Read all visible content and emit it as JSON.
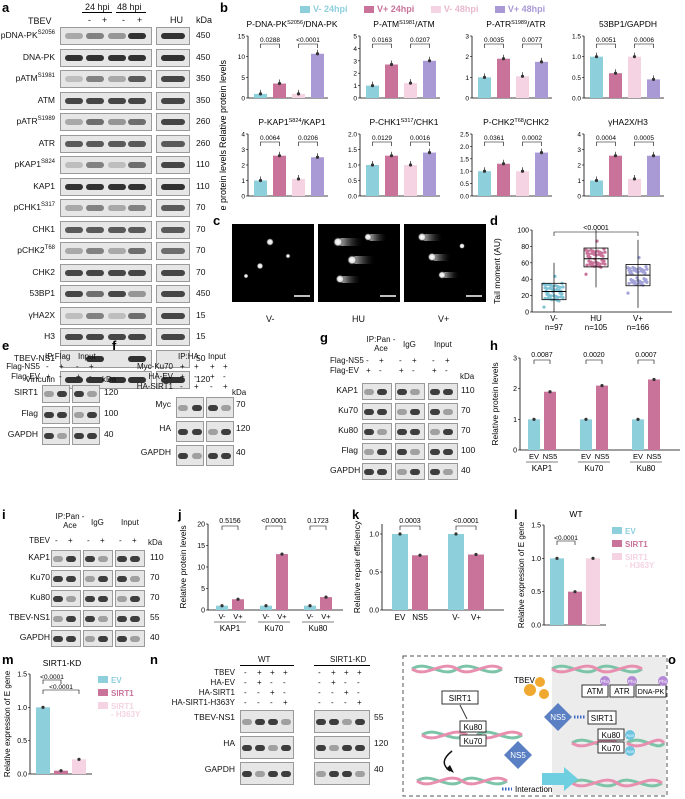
{
  "panels": {
    "a": {
      "letter": "a",
      "tbev_label": "TBEV",
      "time_labels": [
        "24 hpi",
        "48 hpi"
      ],
      "signs": [
        "-",
        "+",
        "-",
        "+"
      ],
      "hu_label": "HU",
      "kda_label": "kDa",
      "rows": [
        {
          "name": "pDNA-PK",
          "sup": "S2056",
          "kda": "450"
        },
        {
          "name": "DNA-PK",
          "sup": "",
          "kda": "450"
        },
        {
          "name": "pATM",
          "sup": "S1981",
          "kda": "350"
        },
        {
          "name": "ATM",
          "sup": "",
          "kda": "350"
        },
        {
          "name": "pATR",
          "sup": "S1989",
          "kda": "260"
        },
        {
          "name": "ATR",
          "sup": "",
          "kda": "260"
        },
        {
          "name": "pKAP1",
          "sup": "S824",
          "kda": "110"
        },
        {
          "name": "KAP1",
          "sup": "",
          "kda": "110"
        },
        {
          "name": "pCHK1",
          "sup": "S317",
          "kda": "70"
        },
        {
          "name": "CHK1",
          "sup": "",
          "kda": "70"
        },
        {
          "name": "pCHK2",
          "sup": "T68",
          "kda": "70"
        },
        {
          "name": "CHK2",
          "sup": "",
          "kda": "70"
        },
        {
          "name": "53BP1",
          "sup": "",
          "kda": "450"
        },
        {
          "name": "γHA2X",
          "sup": "",
          "kda": "15"
        },
        {
          "name": "H3",
          "sup": "",
          "kda": "15"
        },
        {
          "name": "TBEV-NS1",
          "sup": "",
          "kda": "50"
        },
        {
          "name": "Vinculin",
          "sup": "",
          "kda": "120"
        }
      ]
    },
    "b": {
      "letter": "b",
      "legend": [
        {
          "label": "V-  24hpi",
          "color": "#8ecfdc"
        },
        {
          "label": "V+  24hpi",
          "color": "#c9739a"
        },
        {
          "label": "V-  48hpi",
          "color": "#f5d3e2"
        },
        {
          "label": "V+  48hpi",
          "color": "#a99ad6"
        }
      ],
      "ylabel": "Relative protein levels",
      "charts": [
        {
          "title": "P-DNA-PK",
          "sup": "S2056",
          "title_rest": "/DNA-PK",
          "p": [
            "0.0288",
            "<0.0001"
          ],
          "values": [
            1,
            3.5,
            1,
            10.7
          ],
          "ylim": [
            0,
            15
          ],
          "ticks": [
            "0",
            "5",
            "10",
            "15"
          ]
        },
        {
          "title": "P-ATM",
          "sup": "S1981",
          "title_rest": "/ATM",
          "p": [
            "0.0163",
            "0.0207"
          ],
          "values": [
            1,
            2.7,
            1.2,
            3.0
          ],
          "ylim": [
            0,
            5
          ],
          "ticks": [
            "0",
            "1",
            "2",
            "3",
            "4",
            "5"
          ]
        },
        {
          "title": "P-ATR",
          "sup": "S1989",
          "title_rest": "/ATR",
          "p": [
            "0.0035",
            "0.0077"
          ],
          "values": [
            1,
            1.9,
            1.05,
            1.75
          ],
          "ylim": [
            0,
            3
          ],
          "ticks": [
            "0",
            "1",
            "2",
            "3"
          ]
        },
        {
          "title": "53BP1/GAPDH",
          "sup": "",
          "title_rest": "",
          "p": [
            "0.0051",
            "0.0006"
          ],
          "values": [
            1,
            0.6,
            1.0,
            0.45
          ],
          "ylim": [
            0,
            1.5
          ],
          "ticks": [
            "0.0",
            "0.5",
            "1.0",
            "1.5"
          ]
        },
        {
          "title": "P-KAP1",
          "sup": "S824",
          "title_rest": "/KAP1",
          "p": [
            "0.0064",
            "0.0206"
          ],
          "values": [
            1,
            2.6,
            1.1,
            2.5
          ],
          "ylim": [
            0,
            4
          ],
          "ticks": [
            "0",
            "1",
            "2",
            "3",
            "4"
          ]
        },
        {
          "title": "P-CHK1",
          "sup": "S317",
          "title_rest": "/CHK1",
          "p": [
            "0.0129",
            "0.0016"
          ],
          "values": [
            1,
            1.3,
            1.0,
            1.4
          ],
          "ylim": [
            0,
            2
          ],
          "ticks": [
            "0.0",
            "0.5",
            "1.0",
            "1.5",
            "2.0"
          ]
        },
        {
          "title": "P-CHK2",
          "sup": "T68",
          "title_rest": "/CHK2",
          "p": [
            "0.0361",
            "0.0002"
          ],
          "values": [
            1,
            1.3,
            1.0,
            1.75
          ],
          "ylim": [
            0,
            2.5
          ],
          "ticks": [
            "0.0",
            "0.5",
            "1.0",
            "1.5",
            "2.0",
            "2.5"
          ]
        },
        {
          "title": "γHA2X/H3",
          "sup": "",
          "title_rest": "",
          "p": [
            "0.0004",
            "0.0005"
          ],
          "values": [
            1,
            2.6,
            1.1,
            2.6
          ],
          "ylim": [
            0,
            4
          ],
          "ticks": [
            "0",
            "1",
            "2",
            "3",
            "4"
          ]
        }
      ]
    },
    "c": {
      "letter": "c",
      "labels": [
        "V-",
        "HU",
        "V+"
      ]
    },
    "d": {
      "letter": "d",
      "ylabel": "Tail moment (AU)",
      "p": "<0.0001",
      "ticks": [
        "0",
        "20",
        "40",
        "60",
        "80",
        "100"
      ],
      "ylim": [
        0,
        100
      ],
      "groups": [
        {
          "label": "V-",
          "n": "n=97",
          "median": 25,
          "q1": 15,
          "q3": 35,
          "min": 0,
          "max": 60,
          "color": "#7fc3d6"
        },
        {
          "label": "HU",
          "n": "n=105",
          "median": 65,
          "q1": 55,
          "q3": 78,
          "min": 30,
          "max": 100,
          "color": "#c9739a"
        },
        {
          "label": "V+",
          "n": "n=166",
          "median": 45,
          "q1": 32,
          "q3": 58,
          "min": 5,
          "max": 88,
          "color": "#a3a3d8"
        }
      ]
    },
    "e": {
      "letter": "e",
      "ip": "IP:Flag",
      "input": "Input",
      "conds": [
        {
          "label": "Flag-NS5",
          "signs": [
            "-",
            "+",
            "-",
            "+"
          ]
        },
        {
          "label": "Flag-EV",
          "signs": [
            "+",
            "-",
            "+",
            "-"
          ]
        }
      ],
      "kda_label": "kDa",
      "rows": [
        {
          "name": "SIRT1",
          "kda": "120"
        },
        {
          "name": "Flag",
          "kda": "100"
        },
        {
          "name": "GAPDH",
          "kda": "40"
        }
      ]
    },
    "f": {
      "letter": "f",
      "ip": "IP:HA",
      "input": "Input",
      "conds": [
        {
          "label": "Myc-Ku70",
          "signs": [
            "+",
            "+",
            "+",
            "+"
          ]
        },
        {
          "label": "HA-EV",
          "signs": [
            "+",
            "-",
            "+",
            "-"
          ]
        },
        {
          "label": "HA-SIRT1",
          "signs": [
            "-",
            "+",
            "-",
            "+"
          ]
        }
      ],
      "kda_label": "kDa",
      "rows": [
        {
          "name": "Myc",
          "kda": "70"
        },
        {
          "name": "HA",
          "kda": "120"
        },
        {
          "name": "GAPDH",
          "kda": "40"
        }
      ]
    },
    "g": {
      "letter": "g",
      "ip": "IP:Pan\n-Ace",
      "igg": "IgG",
      "input": "Input",
      "conds": [
        {
          "label": "Flag-NS5",
          "signs": [
            "-",
            "+",
            "-",
            "+",
            "-",
            "+"
          ]
        },
        {
          "label": "Flag-EV",
          "signs": [
            "+",
            "-",
            "+",
            "-",
            "+",
            "-"
          ]
        }
      ],
      "kda_label": "kDa",
      "rows": [
        {
          "name": "KAP1",
          "kda": "110"
        },
        {
          "name": "Ku70",
          "kda": "70"
        },
        {
          "name": "Ku80",
          "kda": "70"
        },
        {
          "name": "Flag",
          "kda": "100"
        },
        {
          "name": "GAPDH",
          "kda": "40"
        }
      ]
    },
    "h": {
      "letter": "h",
      "ylabel": "Relative protein levels",
      "p": [
        "0.0087",
        "0.0020",
        "0.0007"
      ],
      "groups": [
        "KAP1",
        "Ku70",
        "Ku80"
      ],
      "sub": [
        "EV",
        "NS5"
      ],
      "values": [
        1,
        1.9,
        1,
        2.1,
        1,
        2.3
      ],
      "ylim": [
        0,
        3
      ],
      "ticks": [
        "0",
        "1",
        "2",
        "3"
      ]
    },
    "i": {
      "letter": "i",
      "ip": "IP:Pan\n-Ace",
      "igg": "IgG",
      "input": "Input",
      "conds": [
        {
          "label": "TBEV",
          "signs": [
            "-",
            "+",
            "-",
            "+",
            "-",
            "+"
          ]
        }
      ],
      "kda_label": "kDa",
      "rows": [
        {
          "name": "KAP1",
          "kda": "110"
        },
        {
          "name": "Ku70",
          "kda": "70"
        },
        {
          "name": "Ku80",
          "kda": "70"
        },
        {
          "name": "TBEV-NS1",
          "kda": "55"
        },
        {
          "name": "GAPDH",
          "kda": "40"
        }
      ]
    },
    "j": {
      "letter": "j",
      "ylabel": "Relative protein levels",
      "p": [
        "0.5156",
        "<0.0001",
        "0.1723"
      ],
      "groups": [
        "KAP1",
        "Ku70",
        "Ku80"
      ],
      "sub": [
        "V-",
        "V+"
      ],
      "values": [
        1,
        2.5,
        1,
        13,
        1,
        3
      ],
      "ylim": [
        0,
        20
      ],
      "ticks": [
        "0",
        "5",
        "10",
        "15",
        "20"
      ]
    },
    "k": {
      "letter": "k",
      "ylabel": "Relative repair efficiency",
      "p": [
        "0.0003",
        "<0.0001"
      ],
      "sub": [
        "EV",
        "NS5",
        "V-",
        "V+"
      ],
      "values": [
        1,
        0.72,
        1,
        0.73
      ],
      "ylim": [
        0,
        1.0
      ],
      "ticks": [
        "0.0",
        "0.5",
        "1.0"
      ]
    },
    "l": {
      "letter": "l",
      "title": "WT",
      "ylabel": "Relative expression of E gene",
      "p": "<0.0001",
      "legend": [
        {
          "label": "EV",
          "color": "#8ecfdc"
        },
        {
          "label": "SIRT1",
          "color": "#c9739a"
        },
        {
          "label": "SIRT1\n- H363Y",
          "color": "#f5d3e2"
        }
      ],
      "values": [
        1,
        0.5,
        1
      ],
      "ylim": [
        0,
        1.5
      ],
      "ticks": [
        "0.0",
        "0.5",
        "1.0",
        "1.5"
      ]
    },
    "m": {
      "letter": "m",
      "title": "SIRT1-KD",
      "ylabel": "Relative expression of E gene",
      "p": [
        "<0.0001",
        "<0.0001"
      ],
      "legend": [
        {
          "label": "EV",
          "color": "#8ecfdc"
        },
        {
          "label": "SIRT1",
          "color": "#c9739a"
        },
        {
          "label": "SIRT1\n- H363Y",
          "color": "#f5d3e2"
        }
      ],
      "values": [
        1,
        0.05,
        0.22
      ],
      "ylim": [
        0,
        1.5
      ],
      "ticks": [
        "0.0",
        "0.5",
        "1.0",
        "1.5"
      ]
    },
    "n": {
      "letter": "n",
      "wt": "WT",
      "kd": "SIRT1-KD",
      "conds": [
        {
          "label": "TBEV",
          "signs": [
            "-",
            "+",
            "+",
            "+",
            "-",
            "+",
            "+",
            "+"
          ]
        },
        {
          "label": "HA-EV",
          "signs": [
            "-",
            "+",
            "-",
            "-",
            "-",
            "+",
            "-",
            "-"
          ]
        },
        {
          "label": "HA-SIRT1",
          "signs": [
            "-",
            "-",
            "+",
            "-",
            "-",
            "-",
            "+",
            "-"
          ]
        },
        {
          "label": "HA-SIRT1-H363Y",
          "signs": [
            "-",
            "-",
            "-",
            "+",
            "-",
            "-",
            "-",
            "+"
          ]
        }
      ],
      "rows": [
        {
          "name": "TBEV-NS1",
          "kda": "55"
        },
        {
          "name": "HA",
          "kda": "120"
        },
        {
          "name": "GAPDH",
          "kda": "40"
        }
      ]
    },
    "o": {
      "letter": "o",
      "labels": {
        "sirt1": "SIRT1",
        "ku80": "Ku80",
        "ku70": "Ku70",
        "tbev": "TBEV",
        "ns5": "NS5",
        "atm": "ATM",
        "atr": "ATR",
        "dnapk": "DNA-PK",
        "pho": "Pho",
        "ace": "Ace",
        "interaction": "Interaction"
      }
    }
  }
}
